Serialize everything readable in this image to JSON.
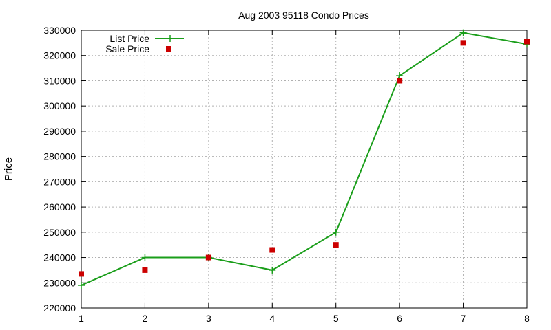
{
  "chart_data": {
    "type": "line",
    "title": "Aug 2003 95118 Condo Prices",
    "xlabel": "",
    "ylabel": "Price",
    "xlim": [
      1,
      8
    ],
    "ylim": [
      220000,
      330000
    ],
    "x_ticks": [
      "1",
      "2",
      "3",
      "4",
      "5",
      "6",
      "7",
      "8"
    ],
    "y_ticks": [
      "220000",
      "230000",
      "240000",
      "250000",
      "260000",
      "270000",
      "280000",
      "290000",
      "300000",
      "310000",
      "320000",
      "330000"
    ],
    "grid": true,
    "legend_position": "top-left",
    "series": [
      {
        "name": "List Price",
        "style": "line-with-plus-markers",
        "color": "#1a9e1a",
        "x": [
          1,
          2,
          3,
          4,
          5,
          6,
          7,
          8
        ],
        "values": [
          229000,
          240000,
          240000,
          235000,
          250000,
          312000,
          329000,
          324500
        ]
      },
      {
        "name": "Sale Price",
        "style": "square-markers",
        "color": "#cc0000",
        "x": [
          1,
          2,
          3,
          4,
          5,
          6,
          7,
          8
        ],
        "values": [
          233500,
          235000,
          240000,
          243000,
          245000,
          310000,
          325000,
          325500
        ]
      }
    ]
  }
}
